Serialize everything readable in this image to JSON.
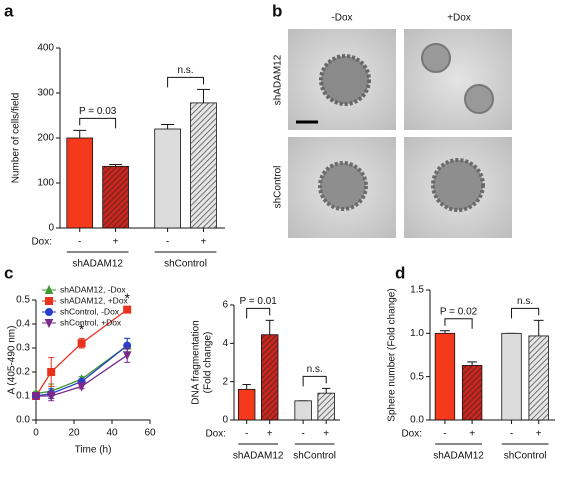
{
  "panel_labels": [
    "a",
    "b",
    "c",
    "d"
  ],
  "images": {
    "columns": [
      "-Dox",
      "+Dox"
    ],
    "rows": [
      "shADAM12",
      "shControl"
    ]
  },
  "chart_data": [
    {
      "type": "bar",
      "ylabel": "Number of cells/field",
      "dox_label": "Dox:",
      "categories": [
        "-",
        "+",
        "-",
        "+"
      ],
      "groups": [
        "shADAM12",
        "shControl"
      ],
      "values": [
        200,
        137,
        220,
        278
      ],
      "errors": [
        17,
        4,
        10,
        30
      ],
      "colors": [
        "#f5391c",
        "#c8261e",
        "#dcdcdc",
        "#e6e6e6"
      ],
      "hatch": [
        false,
        true,
        false,
        true
      ],
      "annotations": [
        "P = 0.03",
        "n.s."
      ],
      "ylim": [
        0,
        400
      ],
      "yticks": [
        0,
        100,
        200,
        300,
        400
      ]
    },
    {
      "type": "line",
      "xlabel": "Time (h)",
      "ylabel": "A (405-490 nm)",
      "x": [
        0,
        8,
        24,
        48
      ],
      "series": [
        {
          "name": "shADAM12, -Dox",
          "color": "#3c9a2e",
          "marker": "triangle",
          "values": [
            0.11,
            0.12,
            0.17,
            0.31
          ],
          "errors": [
            0.01,
            0.03,
            0.01,
            0.03
          ]
        },
        {
          "name": "shADAM12, +Dox",
          "color": "#e8321e",
          "marker": "square",
          "values": [
            0.1,
            0.2,
            0.32,
            0.46
          ],
          "errors": [
            0.01,
            0.06,
            0.02,
            0.01
          ]
        },
        {
          "name": "shControl, -Dox",
          "color": "#2a3fc8",
          "marker": "circle",
          "values": [
            0.1,
            0.11,
            0.16,
            0.31
          ],
          "errors": [
            0.01,
            0.02,
            0.01,
            0.03
          ]
        },
        {
          "name": "shControl, +Dox",
          "color": "#7b2a8c",
          "marker": "triangle-down",
          "values": [
            0.1,
            0.1,
            0.14,
            0.27
          ],
          "errors": [
            0.01,
            0.02,
            0.01,
            0.03
          ]
        }
      ],
      "annotations": [
        {
          "text": "*",
          "x": 24
        },
        {
          "text": "*",
          "x": 48
        }
      ],
      "xlim": [
        0,
        60
      ],
      "xticks": [
        0,
        20,
        40,
        60
      ],
      "ylim": [
        0,
        0.5
      ],
      "yticks": [
        {
          "value": 0,
          "label": "0.0"
        },
        0.1,
        0.2,
        0.3,
        0.4,
        0.5
      ]
    },
    {
      "type": "bar",
      "ylabel": [
        "DNA fragmentation",
        "(Fold change)"
      ],
      "dox_label": "Dox:",
      "categories": [
        "-",
        "+",
        "-",
        "+"
      ],
      "groups": [
        "shADAM12",
        "shControl"
      ],
      "values": [
        1.6,
        4.45,
        1.0,
        1.4
      ],
      "errors": [
        0.25,
        0.75,
        0,
        0.25
      ],
      "colors": [
        "#f5391c",
        "#c8261e",
        "#dcdcdc",
        "#e6e6e6"
      ],
      "hatch": [
        false,
        true,
        false,
        true
      ],
      "annotations": [
        "P = 0.01",
        "n.s."
      ],
      "ylim": [
        0,
        6
      ],
      "yticks": [
        0,
        2,
        4,
        6
      ]
    },
    {
      "type": "bar",
      "ylabel": "Sphere number (Fold change)",
      "dox_label": "Dox:",
      "categories": [
        "-",
        "+",
        "-",
        "+"
      ],
      "groups": [
        "shADAM12",
        "shControl"
      ],
      "values": [
        1.0,
        0.63,
        1.0,
        0.97
      ],
      "errors": [
        0.03,
        0.04,
        0,
        0.18
      ],
      "colors": [
        "#f5391c",
        "#c8261e",
        "#dcdcdc",
        "#e6e6e6"
      ],
      "hatch": [
        false,
        true,
        false,
        true
      ],
      "annotations": [
        "P = 0.02",
        "n.s."
      ],
      "ylim": [
        0,
        1.5
      ],
      "yticks": [
        {
          "value": 0,
          "label": "0.0"
        },
        0.5,
        {
          "value": 1,
          "label": "1.0"
        },
        1.5
      ]
    }
  ]
}
